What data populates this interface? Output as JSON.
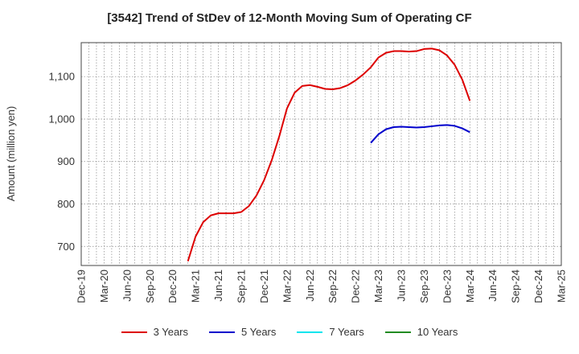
{
  "chart_data": {
    "type": "line",
    "title": "[3542]  Trend of StDev of 12-Month Moving Sum of Operating CF",
    "xlabel": "",
    "ylabel": "Amount (million yen)",
    "ylim": [
      655,
      1180
    ],
    "y_ticks": [
      700,
      800,
      900,
      1000,
      1100
    ],
    "y_tick_labels": [
      "700",
      "800",
      "900",
      "1,000",
      "1,100"
    ],
    "x_tick_labels": [
      "Dec-19",
      "Mar-20",
      "Jun-20",
      "Sep-20",
      "Dec-20",
      "Mar-21",
      "Jun-21",
      "Sep-21",
      "Dec-21",
      "Mar-22",
      "Jun-22",
      "Sep-22",
      "Dec-22",
      "Mar-23",
      "Jun-23",
      "Sep-23",
      "Dec-23",
      "Mar-24",
      "Jun-24",
      "Sep-24",
      "Dec-24",
      "Mar-25"
    ],
    "x_start": "2019-12",
    "grid": true,
    "legend_position": "bottom",
    "series": [
      {
        "name": "3 Years",
        "color": "#dd0000",
        "start": "2021-02",
        "values": [
          665,
          723,
          757,
          773,
          778,
          778,
          778,
          781,
          795,
          820,
          856,
          903,
          960,
          1025,
          1062,
          1078,
          1080,
          1076,
          1071,
          1070,
          1073,
          1080,
          1091,
          1105,
          1122,
          1145,
          1156,
          1160,
          1160,
          1159,
          1160,
          1165,
          1166,
          1162,
          1150,
          1128,
          1093,
          1043
        ]
      },
      {
        "name": "5 Years",
        "color": "#0000cc",
        "start": "2023-02",
        "values": [
          944,
          964,
          976,
          981,
          982,
          981,
          980,
          981,
          983,
          985,
          986,
          984,
          978,
          969
        ]
      },
      {
        "name": "7 Years",
        "color": "#00e5ee",
        "start": null,
        "values": []
      },
      {
        "name": "10 Years",
        "color": "#228b22",
        "start": null,
        "values": []
      }
    ]
  }
}
